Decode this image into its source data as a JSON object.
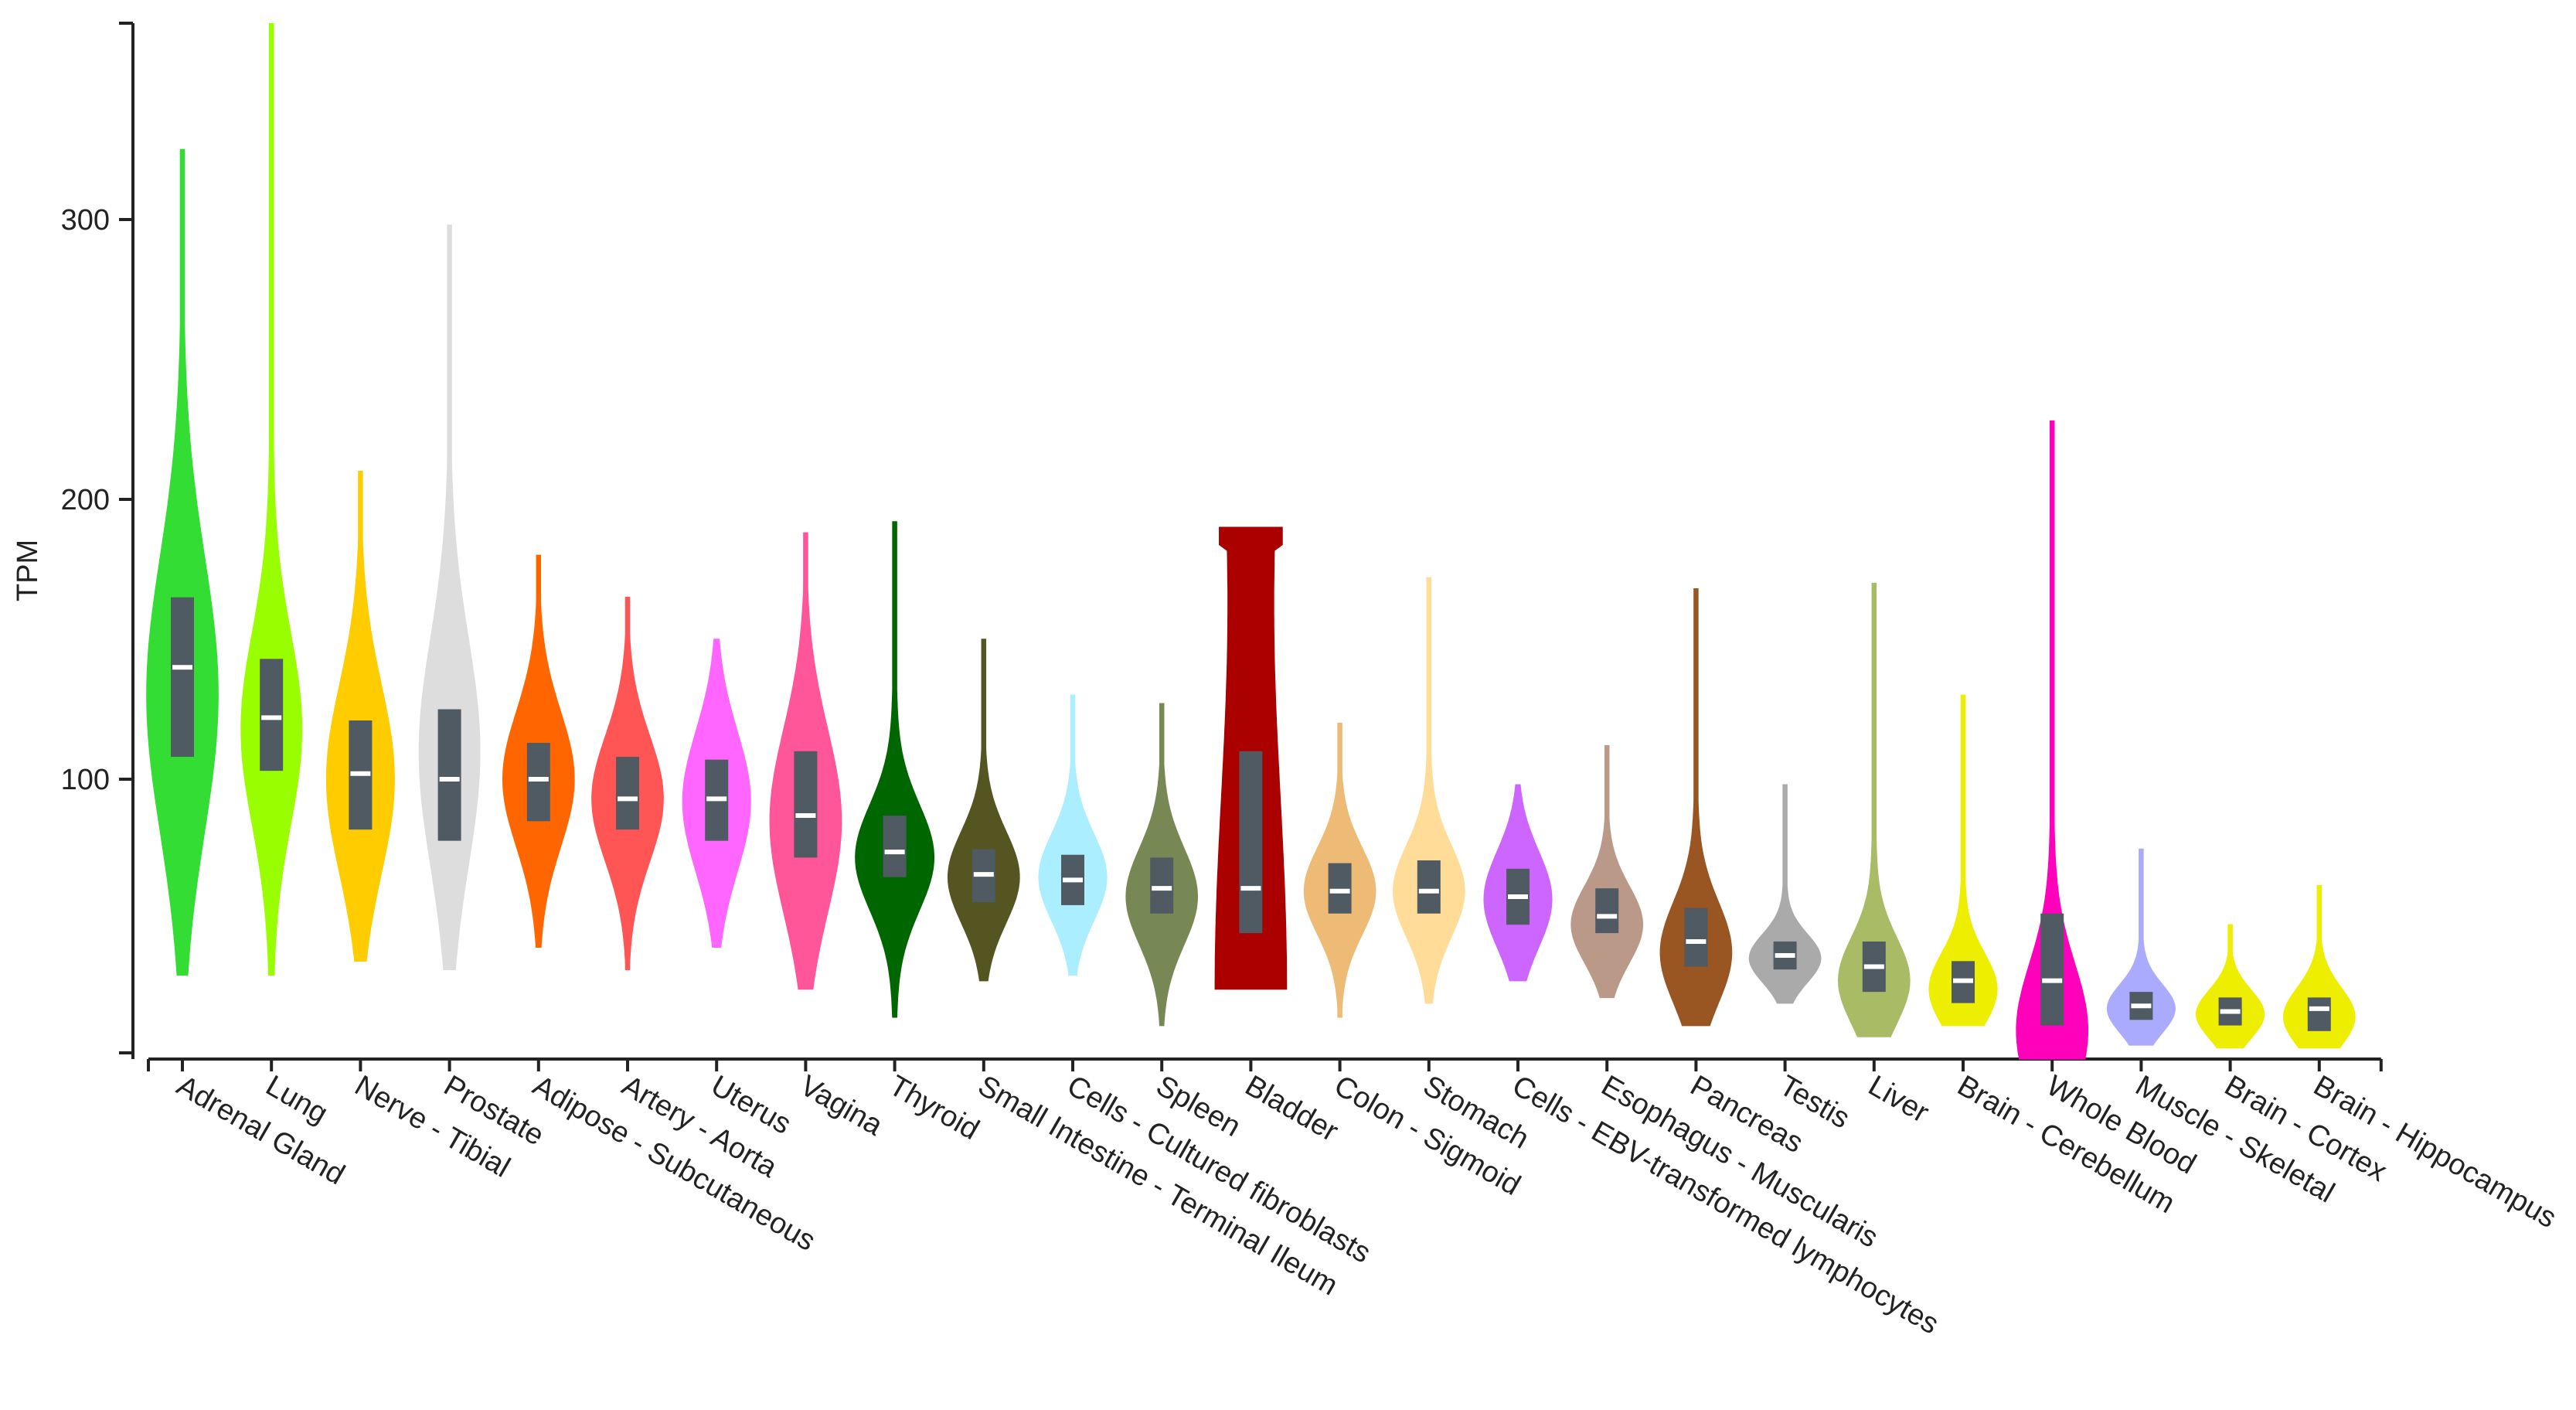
{
  "chart_data": {
    "type": "violin",
    "title": "",
    "xlabel": "",
    "ylabel": "TPM",
    "ylim": [
      0,
      365
    ],
    "yticks": [
      100,
      200,
      300
    ],
    "categories": [
      "Adrenal Gland",
      "Lung",
      "Nerve - Tibial",
      "Prostate",
      "Adipose - Subcutaneous",
      "Artery - Aorta",
      "Uterus",
      "Vagina",
      "Thyroid",
      "Small Intestine - Terminal Ileum",
      "Cells - Cultured fibroblasts",
      "Spleen",
      "Bladder",
      "Colon - Sigmoid",
      "Stomach",
      "Cells - EBV-transformed lymphocytes",
      "Esophagus - Muscularis",
      "Pancreas",
      "Testis",
      "Liver",
      "Brain - Cerebellum",
      "Whole Blood",
      "Muscle - Skeletal",
      "Brain - Cortex",
      "Brain - Hippocampus"
    ],
    "colors": [
      "#33dd33",
      "#99ff00",
      "#ffcc00",
      "#dddddd",
      "#ff6600",
      "#ff5555",
      "#ff66ff",
      "#ff5599",
      "#006600",
      "#555522",
      "#aaeeff",
      "#778855",
      "#aa0000",
      "#eebb77",
      "#ffdd99",
      "#cc66ff",
      "#bb9988",
      "#995522",
      "#aaaaaa",
      "#aabb66",
      "#eeee00",
      "#ff00bb",
      "#aaaaff",
      "#eeee00",
      "#eeee00"
    ],
    "max": [
      325,
      370,
      210,
      298,
      180,
      165,
      150,
      188,
      192,
      150,
      130,
      127,
      190,
      120,
      172,
      98,
      112,
      168,
      98,
      170,
      130,
      228,
      75,
      48,
      62
    ],
    "min": [
      30,
      30,
      35,
      32,
      40,
      32,
      40,
      25,
      15,
      28,
      30,
      12,
      25,
      15,
      20,
      28,
      22,
      12,
      20,
      8,
      12,
      0,
      5,
      4,
      4
    ],
    "q1": [
      108,
      103,
      82,
      78,
      85,
      82,
      78,
      72,
      65,
      56,
      55,
      52,
      45,
      52,
      52,
      48,
      45,
      33,
      32,
      24,
      20,
      12,
      14,
      12,
      10
    ],
    "median": [
      140,
      122,
      102,
      100,
      100,
      93,
      93,
      87,
      74,
      66,
      64,
      61,
      61,
      60,
      60,
      58,
      51,
      42,
      37,
      33,
      28,
      28,
      19,
      17,
      18
    ],
    "q3": [
      165,
      143,
      121,
      125,
      113,
      108,
      107,
      110,
      87,
      75,
      73,
      72,
      110,
      70,
      71,
      68,
      61,
      54,
      42,
      42,
      35,
      52,
      24,
      22,
      22
    ],
    "mode": [
      130,
      118,
      100,
      110,
      100,
      93,
      92,
      85,
      72,
      65,
      65,
      58,
      190,
      60,
      60,
      57,
      48,
      38,
      36,
      28,
      25,
      10,
      18,
      16,
      15
    ],
    "halfwidth": [
      0.4,
      0.34,
      0.38,
      0.34,
      0.4,
      0.4,
      0.38,
      0.4,
      0.44,
      0.4,
      0.38,
      0.4,
      0.4,
      0.4,
      0.4,
      0.38,
      0.4,
      0.4,
      0.4,
      0.4,
      0.38,
      0.4,
      0.38,
      0.38,
      0.4
    ]
  }
}
